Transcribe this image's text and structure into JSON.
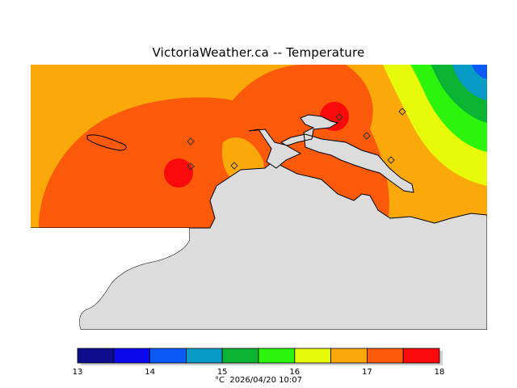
{
  "title": "VictoriaWeather.ca -- Temperature",
  "caption": {
    "unit": "°C",
    "timestamp": "2026/04/20 10:07"
  },
  "legend": {
    "min": 13,
    "max": 18,
    "step": 0.5,
    "tick_labels": [
      "13",
      "14",
      "15",
      "16",
      "17",
      "18"
    ],
    "bands": [
      {
        "from": 13.0,
        "to": 13.5,
        "color": "#0e0e8c"
      },
      {
        "from": 13.5,
        "to": 14.0,
        "color": "#0a0aec"
      },
      {
        "from": 14.0,
        "to": 14.5,
        "color": "#0a5af6"
      },
      {
        "from": 14.5,
        "to": 15.0,
        "color": "#0a9ac6"
      },
      {
        "from": 15.0,
        "to": 15.5,
        "color": "#0ab432"
      },
      {
        "from": 15.5,
        "to": 16.0,
        "color": "#2cf40c"
      },
      {
        "from": 16.0,
        "to": 16.5,
        "color": "#e6fa0a"
      },
      {
        "from": 16.5,
        "to": 17.0,
        "color": "#faa80a"
      },
      {
        "from": 17.0,
        "to": 17.5,
        "color": "#fa5a0a"
      },
      {
        "from": 17.5,
        "to": 18.0,
        "color": "#fa0a0a"
      }
    ]
  },
  "map_colors": {
    "land": "#dcdcdc",
    "coast": "#000000",
    "temp_16_5": "#faa80a",
    "temp_17": "#fa5a0a",
    "temp_17_5": "#fa0a0a",
    "temp_16": "#e6fa0a",
    "temp_15_5": "#2cf40c",
    "temp_15": "#0ab432",
    "temp_14_5": "#0a9ac6",
    "temp_14": "#0a5af6"
  },
  "stations": [
    {
      "id": "station-west"
    },
    {
      "id": "station-west-hot"
    },
    {
      "id": "station-central"
    },
    {
      "id": "station-north-hot"
    },
    {
      "id": "station-east-1"
    },
    {
      "id": "station-east-2"
    },
    {
      "id": "station-east-3"
    }
  ]
}
